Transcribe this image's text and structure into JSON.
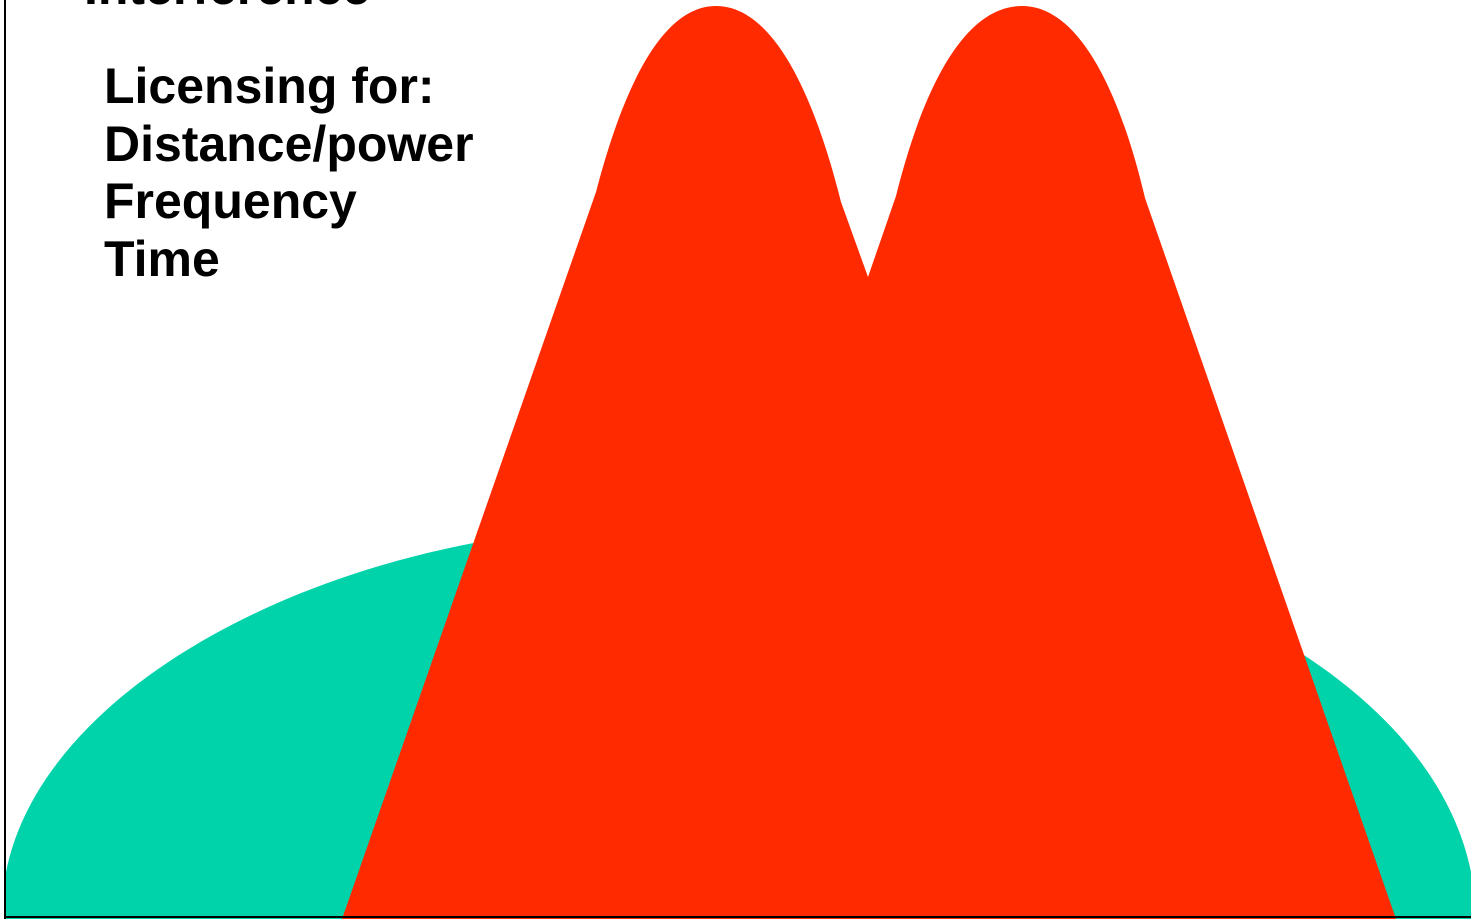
{
  "slide": {
    "title": "Interference",
    "heading": "Licensing for:",
    "items": [
      "Distance/power",
      "Frequency",
      "Time"
    ]
  },
  "colors": {
    "background_dome": "#00D2AA",
    "interference_peaks": "#FF2A00",
    "text": "#000000"
  }
}
